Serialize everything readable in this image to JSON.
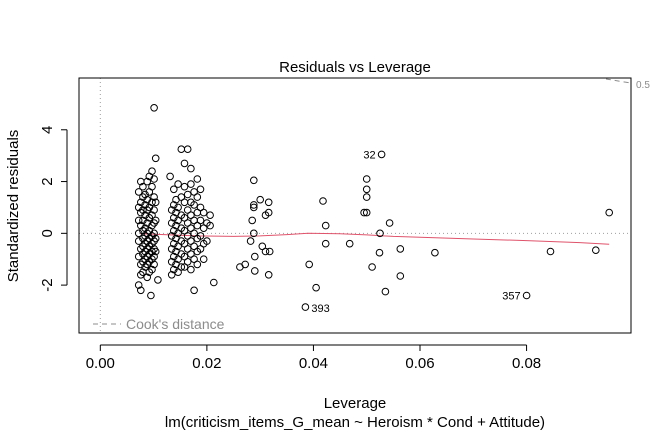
{
  "chart_data": {
    "type": "scatter",
    "title": "Residuals vs Leverage",
    "xlabel": "Leverage",
    "ylabel": "Standardized residuals",
    "subtitle": "lm(criticism_items_G_mean ~ Heroism * Cond + Attitude)",
    "xlim": [
      -0.004,
      0.0996
    ],
    "ylim": [
      -3.85,
      6.0
    ],
    "x_ticks": [
      "0.00",
      "0.02",
      "0.04",
      "0.06",
      "0.08"
    ],
    "y_ticks": [
      "-2",
      "0",
      "2",
      "4"
    ],
    "legend": {
      "label": "Cook's distance",
      "position": "bottom-left"
    },
    "cook_contour_label": "0.5",
    "colors": {
      "points": "#000000",
      "smooth": "#df536b",
      "reference": "#9e9e9e",
      "cook": "#8c8c8c"
    },
    "labeled_points": [
      {
        "label": "32",
        "x": 0.0528,
        "y": 3.05
      },
      {
        "label": "393",
        "x": 0.0385,
        "y": -2.85
      },
      {
        "label": "357",
        "x": 0.08,
        "y": -2.4
      }
    ],
    "smooth_line": {
      "x": [
        0.0075,
        0.012,
        0.018,
        0.025,
        0.03,
        0.035,
        0.039,
        0.045,
        0.05,
        0.055,
        0.06,
        0.07,
        0.08,
        0.09,
        0.0955
      ],
      "y": [
        -0.02,
        -0.05,
        -0.1,
        -0.12,
        -0.1,
        -0.05,
        0.0,
        -0.02,
        -0.06,
        -0.12,
        -0.15,
        -0.22,
        -0.28,
        -0.36,
        -0.42
      ]
    },
    "points": [
      [
        0.0072,
        1.6
      ],
      [
        0.0072,
        1.0
      ],
      [
        0.0072,
        0.5
      ],
      [
        0.0072,
        0.0
      ],
      [
        0.0072,
        -0.3
      ],
      [
        0.0072,
        -0.9
      ],
      [
        0.0072,
        -2.0
      ],
      [
        0.0076,
        2.0
      ],
      [
        0.0076,
        1.2
      ],
      [
        0.0076,
        0.8
      ],
      [
        0.0076,
        0.3
      ],
      [
        0.0076,
        -0.6
      ],
      [
        0.0076,
        -1.2
      ],
      [
        0.0076,
        -1.6
      ],
      [
        0.0076,
        -2.2
      ],
      [
        0.008,
        1.8
      ],
      [
        0.008,
        1.4
      ],
      [
        0.008,
        0.9
      ],
      [
        0.008,
        0.5
      ],
      [
        0.008,
        0.1
      ],
      [
        0.008,
        -0.2
      ],
      [
        0.008,
        -0.5
      ],
      [
        0.008,
        -0.8
      ],
      [
        0.008,
        -1.1
      ],
      [
        0.008,
        -1.5
      ],
      [
        0.0084,
        1.5
      ],
      [
        0.0084,
        1.1
      ],
      [
        0.0084,
        0.7
      ],
      [
        0.0084,
        0.2
      ],
      [
        0.0084,
        -0.1
      ],
      [
        0.0084,
        -0.4
      ],
      [
        0.0084,
        -0.7
      ],
      [
        0.0084,
        -1.0
      ],
      [
        0.0084,
        -1.3
      ],
      [
        0.0088,
        2.0
      ],
      [
        0.0088,
        1.3
      ],
      [
        0.0088,
        0.9
      ],
      [
        0.0088,
        0.4
      ],
      [
        0.0088,
        0.0
      ],
      [
        0.0088,
        -0.3
      ],
      [
        0.0088,
        -0.6
      ],
      [
        0.0088,
        -0.9
      ],
      [
        0.0088,
        -1.2
      ],
      [
        0.0088,
        -1.7
      ],
      [
        0.0092,
        2.2
      ],
      [
        0.0092,
        1.6
      ],
      [
        0.0092,
        1.0
      ],
      [
        0.0092,
        0.6
      ],
      [
        0.0092,
        0.1
      ],
      [
        0.0092,
        -0.2
      ],
      [
        0.0092,
        -0.5
      ],
      [
        0.0092,
        -0.8
      ],
      [
        0.0092,
        -1.1
      ],
      [
        0.0092,
        -1.5
      ],
      [
        0.0095,
        -2.4
      ],
      [
        0.0097,
        2.4
      ],
      [
        0.0097,
        1.8
      ],
      [
        0.0097,
        1.2
      ],
      [
        0.0097,
        0.7
      ],
      [
        0.0097,
        0.3
      ],
      [
        0.0097,
        -0.1
      ],
      [
        0.0097,
        -0.4
      ],
      [
        0.0097,
        -0.7
      ],
      [
        0.0097,
        -1.0
      ],
      [
        0.0097,
        -1.4
      ],
      [
        0.0101,
        4.85
      ],
      [
        0.0101,
        2.1
      ],
      [
        0.0101,
        1.4
      ],
      [
        0.0101,
        0.9
      ],
      [
        0.0101,
        0.4
      ],
      [
        0.0101,
        0.0
      ],
      [
        0.0101,
        -0.3
      ],
      [
        0.0101,
        -0.6
      ],
      [
        0.0101,
        -0.9
      ],
      [
        0.0101,
        -1.2
      ],
      [
        0.0104,
        2.9
      ],
      [
        0.0104,
        1.2
      ],
      [
        0.0104,
        0.5
      ],
      [
        0.0104,
        -0.2
      ],
      [
        0.0104,
        -0.7
      ],
      [
        0.0108,
        -1.8
      ],
      [
        0.0131,
        2.2
      ],
      [
        0.0134,
        0.9
      ],
      [
        0.0134,
        0.4
      ],
      [
        0.0134,
        -0.1
      ],
      [
        0.0134,
        -0.6
      ],
      [
        0.0134,
        -1.1
      ],
      [
        0.0134,
        -1.6
      ],
      [
        0.0138,
        1.7
      ],
      [
        0.0138,
        1.1
      ],
      [
        0.0138,
        0.6
      ],
      [
        0.0138,
        0.1
      ],
      [
        0.0138,
        -0.4
      ],
      [
        0.0138,
        -0.9
      ],
      [
        0.0138,
        -1.4
      ],
      [
        0.0142,
        1.3
      ],
      [
        0.0142,
        0.8
      ],
      [
        0.0142,
        0.3
      ],
      [
        0.0142,
        -0.2
      ],
      [
        0.0142,
        -0.7
      ],
      [
        0.0142,
        -1.2
      ],
      [
        0.0146,
        1.9
      ],
      [
        0.0146,
        1.0
      ],
      [
        0.0146,
        0.5
      ],
      [
        0.0146,
        0.0
      ],
      [
        0.0146,
        -0.5
      ],
      [
        0.0146,
        -1.0
      ],
      [
        0.0146,
        -1.5
      ],
      [
        0.0152,
        3.25
      ],
      [
        0.0152,
        1.4
      ],
      [
        0.0152,
        0.7
      ],
      [
        0.0152,
        0.2
      ],
      [
        0.0152,
        -0.3
      ],
      [
        0.0152,
        -0.8
      ],
      [
        0.0152,
        -1.3
      ],
      [
        0.0158,
        2.7
      ],
      [
        0.0158,
        1.8
      ],
      [
        0.0158,
        1.2
      ],
      [
        0.0158,
        0.6
      ],
      [
        0.0158,
        0.1
      ],
      [
        0.0158,
        -0.4
      ],
      [
        0.0158,
        -0.9
      ],
      [
        0.0158,
        -1.3
      ],
      [
        0.0164,
        3.25
      ],
      [
        0.0164,
        1.5
      ],
      [
        0.0164,
        0.9
      ],
      [
        0.0164,
        0.4
      ],
      [
        0.0164,
        -0.1
      ],
      [
        0.0164,
        -0.6
      ],
      [
        0.0164,
        -1.1
      ],
      [
        0.017,
        2.5
      ],
      [
        0.017,
        1.9
      ],
      [
        0.017,
        1.2
      ],
      [
        0.017,
        0.7
      ],
      [
        0.017,
        0.2
      ],
      [
        0.017,
        -0.3
      ],
      [
        0.017,
        -0.8
      ],
      [
        0.017,
        -1.4
      ],
      [
        0.0176,
        1.6
      ],
      [
        0.0176,
        1.1
      ],
      [
        0.0176,
        0.5
      ],
      [
        0.0176,
        0.0
      ],
      [
        0.0176,
        -0.5
      ],
      [
        0.0176,
        -1.0
      ],
      [
        0.0176,
        -2.2
      ],
      [
        0.0182,
        2.1
      ],
      [
        0.0182,
        1.4
      ],
      [
        0.0182,
        0.8
      ],
      [
        0.0182,
        0.3
      ],
      [
        0.0182,
        -0.2
      ],
      [
        0.0182,
        -0.7
      ],
      [
        0.0182,
        -1.2
      ],
      [
        0.0188,
        1.7
      ],
      [
        0.0188,
        1.0
      ],
      [
        0.0188,
        0.5
      ],
      [
        0.0188,
        -0.1
      ],
      [
        0.0188,
        -0.6
      ],
      [
        0.0194,
        0.8
      ],
      [
        0.0194,
        0.2
      ],
      [
        0.0194,
        -0.4
      ],
      [
        0.0194,
        -1.0
      ],
      [
        0.02,
        0.4
      ],
      [
        0.02,
        -0.3
      ],
      [
        0.0206,
        0.7
      ],
      [
        0.0206,
        0.3
      ],
      [
        0.0213,
        -1.9
      ],
      [
        0.0262,
        -1.3
      ],
      [
        0.0272,
        -1.2
      ],
      [
        0.0282,
        -0.3
      ],
      [
        0.0285,
        0.5
      ],
      [
        0.0288,
        2.05
      ],
      [
        0.0288,
        1.1
      ],
      [
        0.0288,
        1.0
      ],
      [
        0.0288,
        0.0
      ],
      [
        0.029,
        -0.9
      ],
      [
        0.029,
        -1.45
      ],
      [
        0.03,
        1.3
      ],
      [
        0.0304,
        -0.5
      ],
      [
        0.031,
        0.7
      ],
      [
        0.031,
        -0.7
      ],
      [
        0.0316,
        1.2
      ],
      [
        0.0316,
        0.8
      ],
      [
        0.0316,
        -1.6
      ],
      [
        0.0318,
        -0.7
      ],
      [
        0.0385,
        -2.85
      ],
      [
        0.0392,
        -1.2
      ],
      [
        0.0405,
        -2.1
      ],
      [
        0.0418,
        1.25
      ],
      [
        0.0423,
        0.3
      ],
      [
        0.0423,
        -0.4
      ],
      [
        0.0468,
        -0.4
      ],
      [
        0.0495,
        0.8
      ],
      [
        0.05,
        2.1
      ],
      [
        0.05,
        1.7
      ],
      [
        0.05,
        1.4
      ],
      [
        0.05,
        0.8
      ],
      [
        0.051,
        -1.3
      ],
      [
        0.0524,
        -0.75
      ],
      [
        0.0525,
        0.0
      ],
      [
        0.0528,
        3.05
      ],
      [
        0.0535,
        -2.25
      ],
      [
        0.0543,
        0.4
      ],
      [
        0.0563,
        -0.6
      ],
      [
        0.0563,
        -1.65
      ],
      [
        0.0628,
        -0.75
      ],
      [
        0.08,
        -2.4
      ],
      [
        0.0845,
        -0.7
      ],
      [
        0.093,
        -0.65
      ],
      [
        0.0955,
        0.8
      ]
    ]
  }
}
